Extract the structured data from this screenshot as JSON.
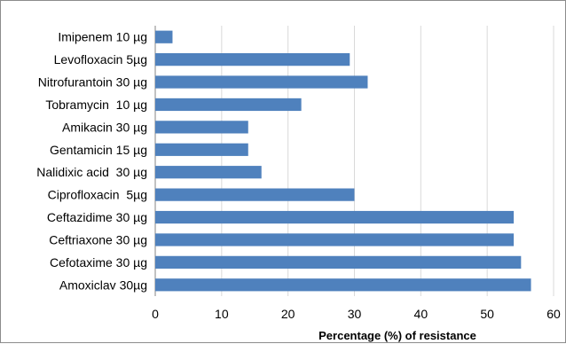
{
  "chart_data": {
    "type": "bar",
    "orientation": "horizontal",
    "title": "",
    "xlabel": "Percentage (%) of resistance",
    "ylabel": "",
    "xlim": [
      0,
      60
    ],
    "xticks": [
      0,
      10,
      20,
      30,
      40,
      50,
      60
    ],
    "grid": "vertical",
    "legend": "none",
    "bar_color": "#4f81bd",
    "categories": [
      "Imipenem 10 µg",
      "Levofloxacin 5µg",
      "Nitrofurantoin 30 µg",
      "Tobramycin  10 µg",
      "Amikacin 30 µg",
      "Gentamicin 15 µg",
      "Nalidixic acid  30 µg",
      "Ciprofloxacin  5µg",
      "Ceftazidime 30 µg",
      "Ceftriaxone 30 µg",
      "Cefotaxime 30 µg",
      "Amoxiclav 30µg"
    ],
    "values": [
      2.6,
      29.3,
      32.0,
      22.0,
      14.0,
      14.0,
      16.0,
      30.0,
      54.0,
      54.0,
      55.1,
      56.6
    ]
  }
}
